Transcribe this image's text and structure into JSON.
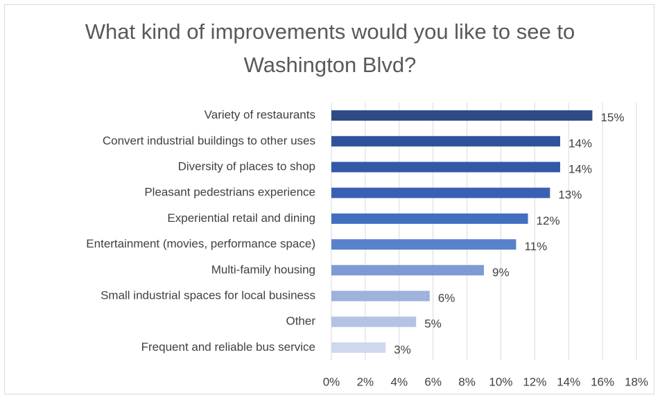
{
  "chart_data": {
    "type": "bar",
    "orientation": "horizontal",
    "title": "What kind of improvements would you like to see to Washington Blvd?",
    "categories": [
      "Variety of restaurants",
      "Convert industrial buildings to other uses",
      "Diversity of places to shop",
      "Pleasant pedestrians experience",
      "Experiential retail and dining",
      "Entertainment (movies, performance space)",
      "Multi-family housing",
      "Small industrial spaces for local business",
      "Other",
      "Frequent and reliable bus service"
    ],
    "values": [
      15.4,
      13.5,
      13.5,
      12.9,
      11.6,
      10.9,
      9.0,
      5.8,
      5.0,
      3.2
    ],
    "value_labels": [
      "15%",
      "14%",
      "14%",
      "13%",
      "12%",
      "11%",
      "9%",
      "6%",
      "5%",
      "3%"
    ],
    "colors": [
      "#2e4a87",
      "#30529a",
      "#3358a6",
      "#3a60b3",
      "#4270c0",
      "#5a82cc",
      "#7e9ad3",
      "#9fb1dd",
      "#b4c3e5",
      "#cdd7ee"
    ],
    "xlim": [
      0,
      18
    ],
    "xticks": [
      {
        "value": 0,
        "label": "0%"
      },
      {
        "value": 2,
        "label": "2%"
      },
      {
        "value": 4,
        "label": "4%"
      },
      {
        "value": 6,
        "label": "6%"
      },
      {
        "value": 8,
        "label": "8%"
      },
      {
        "value": 10,
        "label": "10%"
      },
      {
        "value": 12,
        "label": "12%"
      },
      {
        "value": 14,
        "label": "14%"
      },
      {
        "value": 16,
        "label": "16%"
      },
      {
        "value": 18,
        "label": "18%"
      }
    ],
    "grid": true
  }
}
